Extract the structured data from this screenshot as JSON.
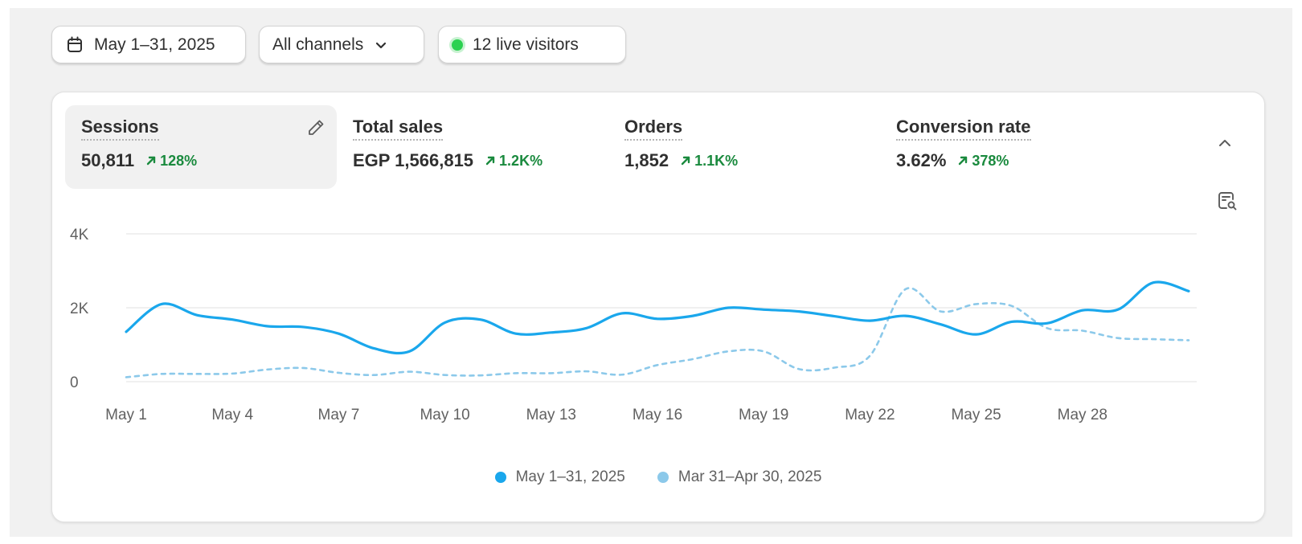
{
  "filters": {
    "date_range": "May 1–31, 2025",
    "channels": "All channels",
    "live_visitors": "12 live visitors"
  },
  "metrics": [
    {
      "title": "Sessions",
      "value": "50,811",
      "change": "128%"
    },
    {
      "title": "Total sales",
      "value": "EGP 1,566,815",
      "change": "1.2K%"
    },
    {
      "title": "Orders",
      "value": "1,852",
      "change": "1.1K%"
    },
    {
      "title": "Conversion rate",
      "value": "3.62%",
      "change": "378%"
    }
  ],
  "colors": {
    "current_series": "#1aa7ec",
    "previous_series": "#8cc9ea",
    "positive_change": "#1a8a3e",
    "live_dot": "#2bd150"
  },
  "icons": {
    "date": "calendar-icon",
    "channels": "chevron-down-icon",
    "edit": "pencil-icon",
    "collapse": "chevron-up-icon",
    "explore": "search-document-icon",
    "change": "arrow-up-right-icon"
  },
  "chart_data": {
    "type": "line",
    "x_tick_labels": [
      "May 1",
      "May 4",
      "May 7",
      "May 10",
      "May 13",
      "May 16",
      "May 19",
      "May 22",
      "May 25",
      "May 28"
    ],
    "y_tick_labels": [
      "0",
      "2K",
      "4K"
    ],
    "ylim": [
      0,
      4000
    ],
    "grid": true,
    "legend_position": "bottom",
    "series": [
      {
        "name": "May 1–31, 2025",
        "style": "solid",
        "values": [
          1350,
          2100,
          1800,
          1680,
          1500,
          1480,
          1300,
          900,
          820,
          1600,
          1680,
          1300,
          1330,
          1450,
          1850,
          1700,
          1780,
          2000,
          1950,
          1900,
          1770,
          1650,
          1780,
          1550,
          1280,
          1620,
          1580,
          1930,
          1950,
          2680,
          2450
        ]
      },
      {
        "name": "Mar 31–Apr 30, 2025",
        "style": "dashed",
        "values": [
          120,
          210,
          210,
          220,
          330,
          370,
          240,
          180,
          270,
          180,
          170,
          230,
          230,
          280,
          190,
          450,
          610,
          820,
          820,
          340,
          380,
          700,
          2500,
          1900,
          2100,
          2050,
          1450,
          1380,
          1180,
          1150,
          1120
        ]
      }
    ]
  }
}
